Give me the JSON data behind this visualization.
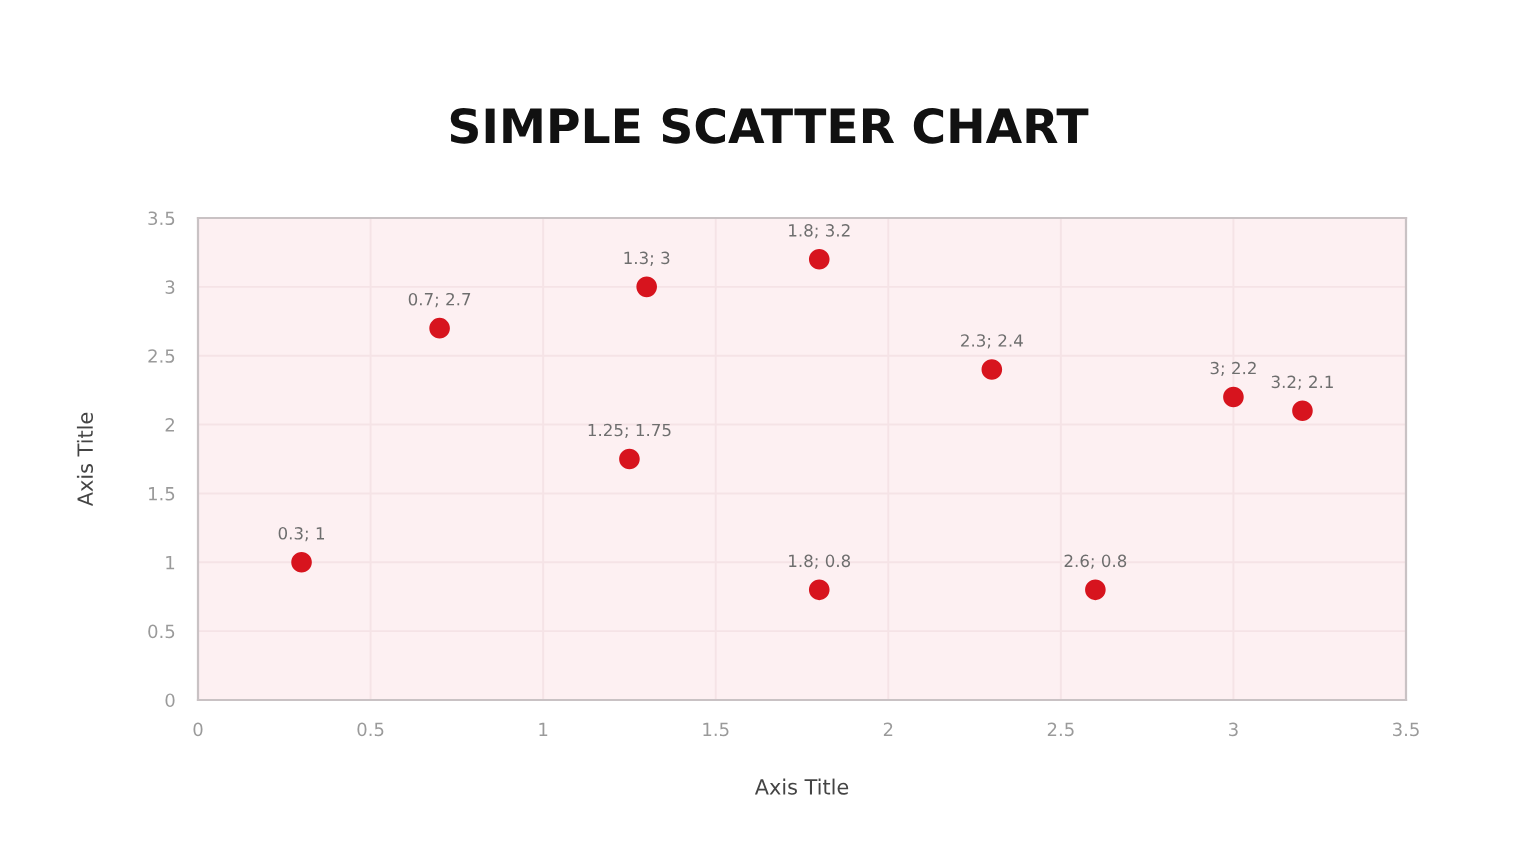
{
  "chart_data": {
    "type": "scatter",
    "title": "SIMPLE SCATTER CHART",
    "xlabel": "Axis Title",
    "ylabel": "Axis Title",
    "x": [
      0.3,
      0.7,
      1.25,
      1.3,
      1.8,
      1.8,
      2.3,
      2.6,
      3,
      3.2
    ],
    "series": [
      {
        "color": "#d7141e",
        "values": [
          1,
          2.7,
          1.75,
          3,
          3.2,
          0.8,
          2.4,
          0.8,
          2.2,
          2.1
        ],
        "value_labels": [
          "0.3; 1",
          "0.7; 2.7",
          "1.25; 1.75",
          "1.3; 3",
          "1.8; 3.2",
          "1.8; 0.8",
          "2.3; 2.4",
          "2.6; 0.8",
          "3; 2.2",
          "3.2; 2.1"
        ]
      }
    ],
    "xlim": [
      0,
      3.5
    ],
    "ylim": [
      0,
      3.5
    ],
    "xticks": [
      0,
      0.5,
      1,
      1.5,
      2,
      2.5,
      3,
      3.5
    ],
    "yticks": [
      0,
      0.5,
      1,
      1.5,
      2,
      2.5,
      3,
      3.5
    ],
    "grid": true,
    "marker": "circle"
  }
}
